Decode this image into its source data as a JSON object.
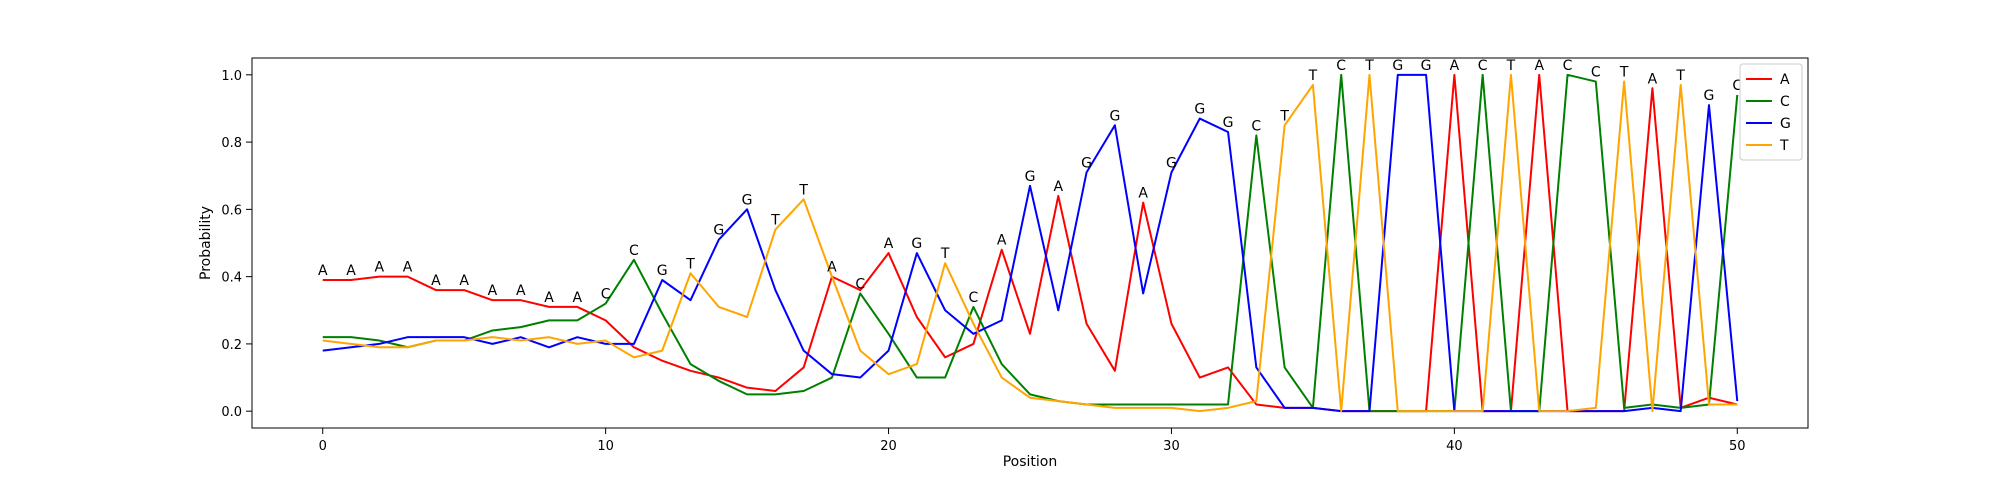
{
  "chart_data": {
    "type": "line",
    "title": "",
    "xlabel": "Position",
    "ylabel": "Probability",
    "xlim": [
      -2.5,
      52.5
    ],
    "ylim": [
      -0.05,
      1.05
    ],
    "x_ticks": [
      0,
      10,
      20,
      30,
      40,
      50
    ],
    "y_ticks": [
      0.0,
      0.2,
      0.4,
      0.6,
      0.8,
      1.0
    ],
    "x_tick_labels": [
      "0",
      "10",
      "20",
      "30",
      "40",
      "50"
    ],
    "y_tick_labels": [
      "0.0",
      "0.2",
      "0.4",
      "0.6",
      "0.8",
      "1.0"
    ],
    "grid": false,
    "legend_position": "top-right",
    "x": [
      0,
      1,
      2,
      3,
      4,
      5,
      6,
      7,
      8,
      9,
      10,
      11,
      12,
      13,
      14,
      15,
      16,
      17,
      18,
      19,
      20,
      21,
      22,
      23,
      24,
      25,
      26,
      27,
      28,
      29,
      30,
      31,
      32,
      33,
      34,
      35,
      36,
      37,
      38,
      39,
      40,
      41,
      42,
      43,
      44,
      45,
      46,
      47,
      48,
      49,
      50
    ],
    "series": [
      {
        "name": "A",
        "color": "#ff0000",
        "values": [
          0.39,
          0.39,
          0.4,
          0.4,
          0.36,
          0.36,
          0.33,
          0.33,
          0.31,
          0.31,
          0.27,
          0.19,
          0.15,
          0.12,
          0.1,
          0.07,
          0.06,
          0.13,
          0.4,
          0.36,
          0.47,
          0.28,
          0.16,
          0.2,
          0.48,
          0.23,
          0.64,
          0.26,
          0.12,
          0.62,
          0.26,
          0.1,
          0.13,
          0.02,
          0.01,
          0.01,
          0.0,
          0.0,
          0.0,
          0.0,
          1.0,
          0.0,
          0.0,
          1.0,
          0.0,
          0.0,
          0.0,
          0.96,
          0.01,
          0.04,
          0.02
        ]
      },
      {
        "name": "C",
        "color": "#008000",
        "values": [
          0.22,
          0.22,
          0.21,
          0.19,
          0.21,
          0.21,
          0.24,
          0.25,
          0.27,
          0.27,
          0.32,
          0.45,
          0.29,
          0.14,
          0.09,
          0.05,
          0.05,
          0.06,
          0.1,
          0.35,
          0.23,
          0.1,
          0.1,
          0.31,
          0.14,
          0.05,
          0.03,
          0.02,
          0.02,
          0.02,
          0.02,
          0.02,
          0.02,
          0.82,
          0.13,
          0.01,
          1.0,
          0.0,
          0.0,
          0.0,
          0.0,
          1.0,
          0.0,
          0.0,
          1.0,
          0.98,
          0.01,
          0.02,
          0.01,
          0.02,
          0.94
        ]
      },
      {
        "name": "G",
        "color": "#0000ff",
        "values": [
          0.18,
          0.19,
          0.2,
          0.22,
          0.22,
          0.22,
          0.2,
          0.22,
          0.19,
          0.22,
          0.2,
          0.2,
          0.39,
          0.33,
          0.51,
          0.6,
          0.36,
          0.18,
          0.11,
          0.1,
          0.18,
          0.47,
          0.3,
          0.23,
          0.27,
          0.67,
          0.3,
          0.71,
          0.85,
          0.35,
          0.71,
          0.87,
          0.83,
          0.13,
          0.01,
          0.01,
          0.0,
          0.0,
          1.0,
          1.0,
          0.0,
          0.0,
          0.0,
          0.0,
          0.0,
          0.0,
          0.0,
          0.01,
          0.0,
          0.91,
          0.03
        ]
      },
      {
        "name": "T",
        "color": "#ffa500",
        "values": [
          0.21,
          0.2,
          0.19,
          0.19,
          0.21,
          0.21,
          0.22,
          0.21,
          0.22,
          0.2,
          0.21,
          0.16,
          0.18,
          0.41,
          0.31,
          0.28,
          0.54,
          0.63,
          0.4,
          0.18,
          0.11,
          0.14,
          0.44,
          0.26,
          0.1,
          0.04,
          0.03,
          0.02,
          0.01,
          0.01,
          0.01,
          0.0,
          0.01,
          0.03,
          0.85,
          0.97,
          0.0,
          1.0,
          0.0,
          0.0,
          0.0,
          0.0,
          1.0,
          0.0,
          0.0,
          0.01,
          0.98,
          0.0,
          0.97,
          0.02,
          0.02
        ]
      }
    ],
    "annotations": [
      {
        "x": 0,
        "y": 0.39,
        "text": "A"
      },
      {
        "x": 1,
        "y": 0.39,
        "text": "A"
      },
      {
        "x": 2,
        "y": 0.4,
        "text": "A"
      },
      {
        "x": 3,
        "y": 0.4,
        "text": "A"
      },
      {
        "x": 4,
        "y": 0.36,
        "text": "A"
      },
      {
        "x": 5,
        "y": 0.36,
        "text": "A"
      },
      {
        "x": 6,
        "y": 0.33,
        "text": "A"
      },
      {
        "x": 7,
        "y": 0.33,
        "text": "A"
      },
      {
        "x": 8,
        "y": 0.31,
        "text": "A"
      },
      {
        "x": 9,
        "y": 0.31,
        "text": "A"
      },
      {
        "x": 10,
        "y": 0.32,
        "text": "C"
      },
      {
        "x": 11,
        "y": 0.45,
        "text": "C"
      },
      {
        "x": 12,
        "y": 0.39,
        "text": "G"
      },
      {
        "x": 13,
        "y": 0.41,
        "text": "T"
      },
      {
        "x": 14,
        "y": 0.51,
        "text": "G"
      },
      {
        "x": 15,
        "y": 0.6,
        "text": "G"
      },
      {
        "x": 16,
        "y": 0.54,
        "text": "T"
      },
      {
        "x": 17,
        "y": 0.63,
        "text": "T"
      },
      {
        "x": 18,
        "y": 0.4,
        "text": "A"
      },
      {
        "x": 19,
        "y": 0.35,
        "text": "C"
      },
      {
        "x": 20,
        "y": 0.47,
        "text": "A"
      },
      {
        "x": 21,
        "y": 0.47,
        "text": "G"
      },
      {
        "x": 22,
        "y": 0.44,
        "text": "T"
      },
      {
        "x": 23,
        "y": 0.31,
        "text": "C"
      },
      {
        "x": 24,
        "y": 0.48,
        "text": "A"
      },
      {
        "x": 25,
        "y": 0.67,
        "text": "G"
      },
      {
        "x": 26,
        "y": 0.64,
        "text": "A"
      },
      {
        "x": 27,
        "y": 0.71,
        "text": "G"
      },
      {
        "x": 28,
        "y": 0.85,
        "text": "G"
      },
      {
        "x": 29,
        "y": 0.62,
        "text": "A"
      },
      {
        "x": 30,
        "y": 0.71,
        "text": "G"
      },
      {
        "x": 31,
        "y": 0.87,
        "text": "G"
      },
      {
        "x": 32,
        "y": 0.83,
        "text": "G"
      },
      {
        "x": 33,
        "y": 0.82,
        "text": "C"
      },
      {
        "x": 34,
        "y": 0.85,
        "text": "T"
      },
      {
        "x": 35,
        "y": 0.97,
        "text": "T"
      },
      {
        "x": 36,
        "y": 1.0,
        "text": "C"
      },
      {
        "x": 37,
        "y": 1.0,
        "text": "T"
      },
      {
        "x": 38,
        "y": 1.0,
        "text": "G"
      },
      {
        "x": 39,
        "y": 1.0,
        "text": "G"
      },
      {
        "x": 40,
        "y": 1.0,
        "text": "A"
      },
      {
        "x": 41,
        "y": 1.0,
        "text": "C"
      },
      {
        "x": 42,
        "y": 1.0,
        "text": "T"
      },
      {
        "x": 43,
        "y": 1.0,
        "text": "A"
      },
      {
        "x": 44,
        "y": 1.0,
        "text": "C"
      },
      {
        "x": 45,
        "y": 0.98,
        "text": "C"
      },
      {
        "x": 46,
        "y": 0.98,
        "text": "T"
      },
      {
        "x": 47,
        "y": 0.96,
        "text": "A"
      },
      {
        "x": 48,
        "y": 0.97,
        "text": "T"
      },
      {
        "x": 49,
        "y": 0.91,
        "text": "G"
      },
      {
        "x": 50,
        "y": 0.94,
        "text": "C"
      }
    ]
  }
}
